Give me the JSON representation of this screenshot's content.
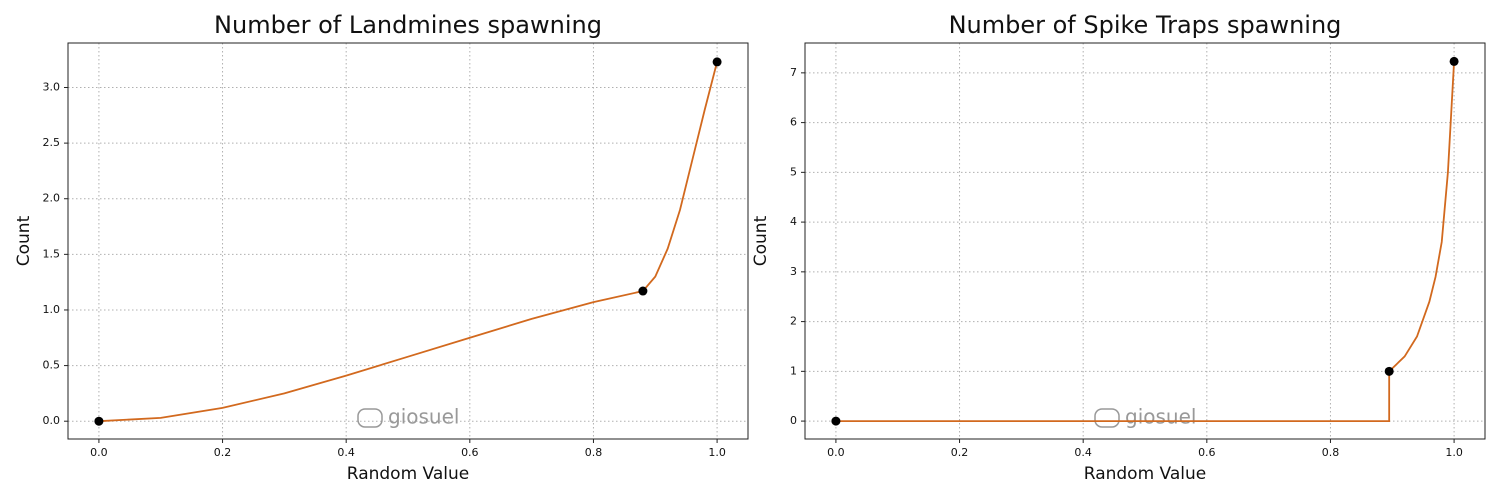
{
  "chart_data": [
    {
      "type": "line",
      "title": "Number of Landmines spawning",
      "x_label": "Random Value",
      "y_label": "Count",
      "watermark": "giosuel",
      "x": [
        0,
        0.1,
        0.2,
        0.3,
        0.4,
        0.5,
        0.6,
        0.7,
        0.8,
        0.88,
        0.9,
        0.92,
        0.94,
        0.96,
        0.98,
        1.0
      ],
      "values": [
        0,
        0.03,
        0.12,
        0.25,
        0.41,
        0.58,
        0.75,
        0.92,
        1.07,
        1.17,
        1.3,
        1.55,
        1.9,
        2.35,
        2.8,
        3.23
      ],
      "color": "#d2691e",
      "points": {
        "x": [
          0,
          0.88,
          1.0
        ],
        "values": [
          0,
          1.17,
          3.23
        ],
        "color": "#000000"
      },
      "xlim": [
        -0.05,
        1.05
      ],
      "ylim": [
        -0.16,
        3.4
      ],
      "xticks": [
        {
          "value": 0,
          "label": "0.0"
        },
        0.2,
        0.4,
        0.6,
        0.8,
        {
          "value": 1,
          "label": "1.0"
        }
      ],
      "yticks": [
        {
          "value": 0,
          "label": "0.0"
        },
        0.5,
        {
          "value": 1,
          "label": "1.0"
        },
        1.5,
        {
          "value": 2,
          "label": "2.0"
        },
        2.5,
        {
          "value": 3,
          "label": "3.0"
        }
      ],
      "grid": true
    },
    {
      "type": "line",
      "title": "Number of Spike Traps spawning",
      "x_label": "Random Value",
      "y_label": "Count",
      "watermark": "giosuel",
      "x": [
        0,
        0.895,
        0.895,
        0.92,
        0.94,
        0.96,
        0.97,
        0.98,
        0.99,
        1.0
      ],
      "values": [
        0,
        0,
        1,
        1.3,
        1.7,
        2.4,
        2.9,
        3.6,
        5.0,
        7.23
      ],
      "color": "#d2691e",
      "points": {
        "x": [
          0,
          0.895,
          1.0
        ],
        "values": [
          0,
          1,
          7.23
        ],
        "color": "#000000"
      },
      "xlim": [
        -0.05,
        1.05
      ],
      "ylim": [
        -0.36,
        7.6
      ],
      "xticks": [
        {
          "value": 0,
          "label": "0.0"
        },
        0.2,
        0.4,
        0.6,
        0.8,
        {
          "value": 1,
          "label": "1.0"
        }
      ],
      "yticks": [
        0,
        1,
        2,
        3,
        4,
        5,
        6,
        7
      ],
      "grid": true
    }
  ]
}
